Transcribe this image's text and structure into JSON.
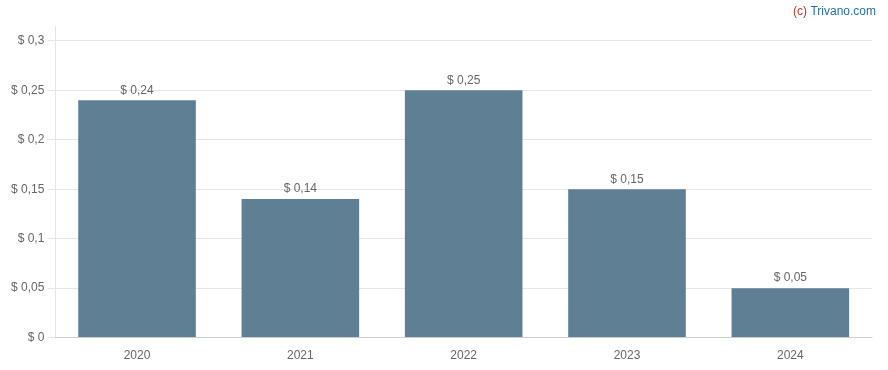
{
  "chart_data": {
    "type": "bar",
    "categories": [
      "2020",
      "2021",
      "2022",
      "2023",
      "2024"
    ],
    "values": [
      0.24,
      0.14,
      0.25,
      0.15,
      0.05
    ],
    "value_labels": [
      "$ 0,24",
      "$ 0,14",
      "$ 0,25",
      "$ 0,15",
      "$ 0,05"
    ],
    "data_labels": true,
    "color": "#5f7f95",
    "ylim": [
      0,
      0.315
    ],
    "yticks": [
      {
        "value": 0,
        "label": "$ 0"
      },
      {
        "value": 0.05,
        "label": "$ 0,05"
      },
      {
        "value": 0.1,
        "label": "$ 0,1"
      },
      {
        "value": 0.15,
        "label": "$ 0,15"
      },
      {
        "value": 0.2,
        "label": "$ 0,2"
      },
      {
        "value": 0.25,
        "label": "$ 0,25"
      },
      {
        "value": 0.3,
        "label": "$ 0,3"
      }
    ],
    "grid": true,
    "annotations": [
      {
        "text": "(c)",
        "color": "#c0392b"
      },
      {
        "text": "Trivano.com",
        "color": "#2471a3"
      }
    ]
  }
}
